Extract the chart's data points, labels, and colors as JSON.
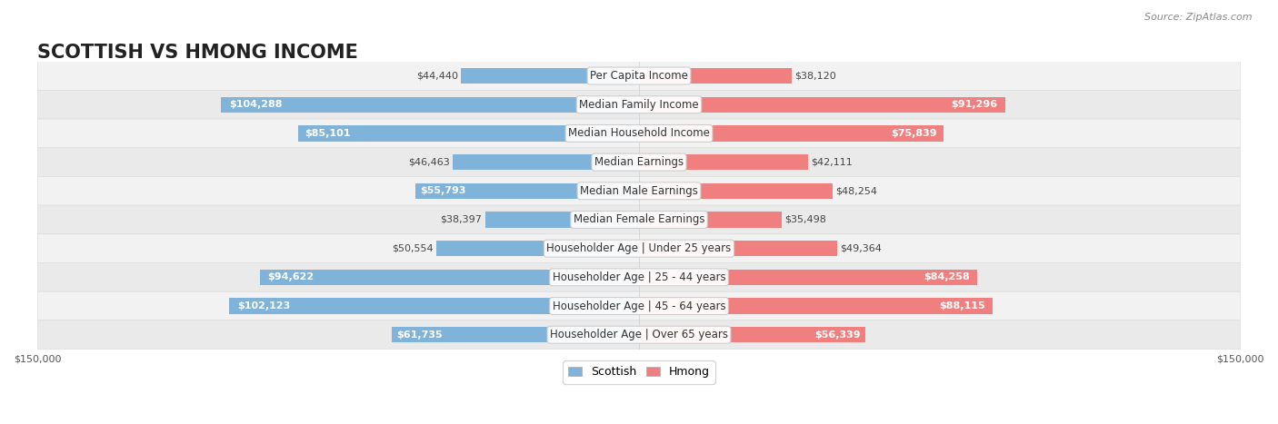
{
  "title": "SCOTTISH VS HMONG INCOME",
  "source": "Source: ZipAtlas.com",
  "categories": [
    "Per Capita Income",
    "Median Family Income",
    "Median Household Income",
    "Median Earnings",
    "Median Male Earnings",
    "Median Female Earnings",
    "Householder Age | Under 25 years",
    "Householder Age | 25 - 44 years",
    "Householder Age | 45 - 64 years",
    "Householder Age | Over 65 years"
  ],
  "scottish_values": [
    44440,
    104288,
    85101,
    46463,
    55793,
    38397,
    50554,
    94622,
    102123,
    61735
  ],
  "hmong_values": [
    38120,
    91296,
    75839,
    42111,
    48254,
    35498,
    49364,
    84258,
    88115,
    56339
  ],
  "scottish_color": "#7fb3d9",
  "hmong_color": "#f08080",
  "scottish_color_dark": "#5b9ec9",
  "hmong_color_dark": "#e85d8a",
  "max_value": 150000,
  "bar_height": 0.55,
  "background_color": "#f5f5f5",
  "row_bg_light": "#f0f0f0",
  "row_bg_dark": "#e8e8e8",
  "title_fontsize": 15,
  "label_fontsize": 8.5,
  "value_fontsize": 8,
  "legend_fontsize": 9,
  "source_fontsize": 8
}
